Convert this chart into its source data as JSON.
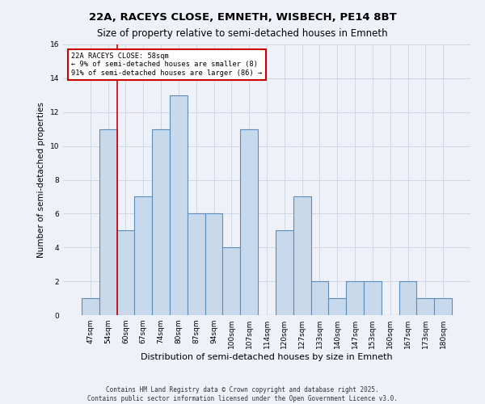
{
  "title_line1": "22A, RACEYS CLOSE, EMNETH, WISBECH, PE14 8BT",
  "title_line2": "Size of property relative to semi-detached houses in Emneth",
  "xlabel": "Distribution of semi-detached houses by size in Emneth",
  "ylabel": "Number of semi-detached properties",
  "categories": [
    "47sqm",
    "54sqm",
    "60sqm",
    "67sqm",
    "74sqm",
    "80sqm",
    "87sqm",
    "94sqm",
    "100sqm",
    "107sqm",
    "114sqm",
    "120sqm",
    "127sqm",
    "133sqm",
    "140sqm",
    "147sqm",
    "153sqm",
    "160sqm",
    "167sqm",
    "173sqm",
    "180sqm"
  ],
  "values": [
    1,
    11,
    5,
    7,
    11,
    13,
    6,
    6,
    4,
    11,
    0,
    5,
    7,
    2,
    1,
    2,
    2,
    0,
    2,
    1,
    1
  ],
  "bar_color": "#c9d9ec",
  "bar_edge_color": "#5b8db8",
  "annotation_text": "22A RACEYS CLOSE: 58sqm\n← 9% of semi-detached houses are smaller (8)\n91% of semi-detached houses are larger (86) →",
  "annotation_box_color": "#ffffff",
  "annotation_edge_color": "#cc0000",
  "vline_color": "#cc0000",
  "vline_x": 1.5,
  "ylim": [
    0,
    16
  ],
  "yticks": [
    0,
    2,
    4,
    6,
    8,
    10,
    12,
    14,
    16
  ],
  "grid_color": "#d0d8e8",
  "background_color": "#eef2f8",
  "footer_line1": "Contains HM Land Registry data © Crown copyright and database right 2025.",
  "footer_line2": "Contains public sector information licensed under the Open Government Licence v3.0.",
  "title_fontsize": 9.5,
  "subtitle_fontsize": 8.5,
  "tick_fontsize": 6.5,
  "ylabel_fontsize": 7.5,
  "xlabel_fontsize": 8,
  "footer_fontsize": 5.5
}
